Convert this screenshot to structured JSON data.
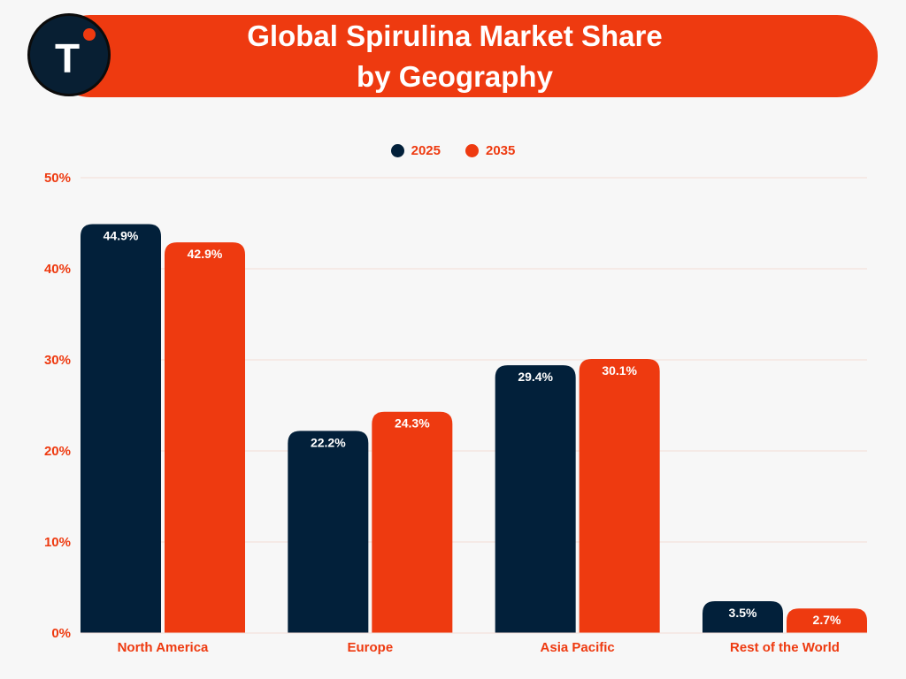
{
  "header": {
    "title_line1": "Global Spirulina Market Share",
    "title_line2": "by Geography",
    "logo_letter": "T"
  },
  "colors": {
    "banner": "#ee3a10",
    "logo_bg": "#081f33",
    "series_2025": "#02203a",
    "series_2035": "#ee3a10",
    "gridline": "#f3dcd6",
    "label_text": "#ee3a10"
  },
  "chart_data": {
    "type": "bar",
    "title": "Global Spirulina Market Share by Geography",
    "xlabel": "",
    "ylabel": "",
    "categories": [
      "North America",
      "Europe",
      "Asia Pacific",
      "Rest of the World"
    ],
    "series": [
      {
        "name": "2025",
        "values": [
          44.9,
          22.2,
          29.4,
          3.5
        ],
        "labels": [
          "44.9%",
          "22.2%",
          "29.4%",
          "3.5%"
        ],
        "color": "#02203a"
      },
      {
        "name": "2035",
        "values": [
          42.9,
          24.3,
          30.1,
          2.7
        ],
        "labels": [
          "42.9%",
          "24.3%",
          "30.1%",
          "2.7%"
        ],
        "color": "#ee3a10"
      }
    ],
    "ylim": [
      0,
      50
    ],
    "yticks": [
      0,
      10,
      20,
      30,
      40,
      50
    ],
    "ytick_labels": [
      "0%",
      "10%",
      "20%",
      "30%",
      "40%",
      "50%"
    ],
    "grid": true,
    "legend_position": "top-center"
  }
}
